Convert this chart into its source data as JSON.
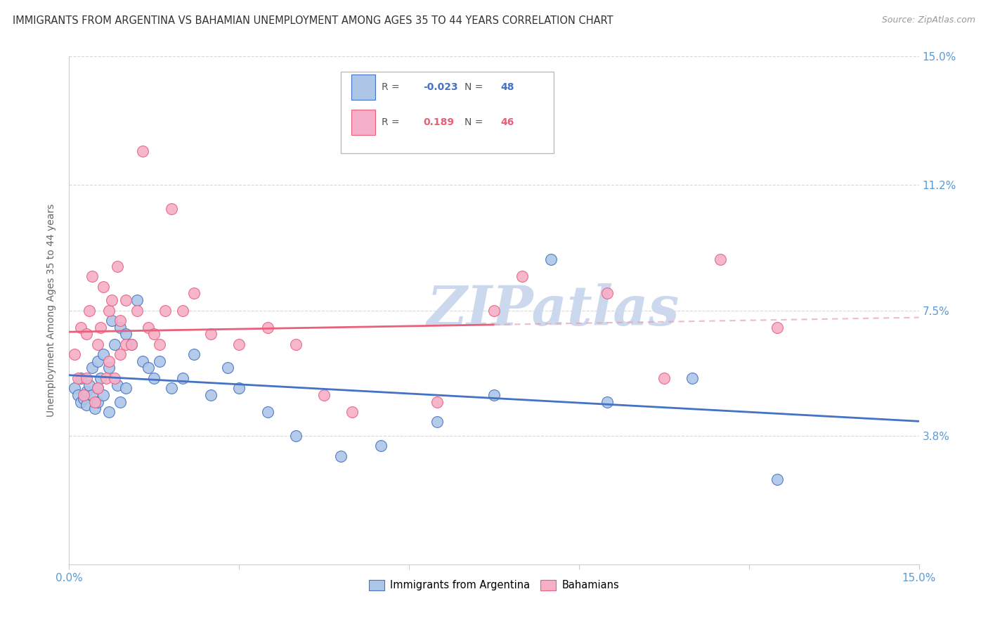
{
  "title": "IMMIGRANTS FROM ARGENTINA VS BAHAMIAN UNEMPLOYMENT AMONG AGES 35 TO 44 YEARS CORRELATION CHART",
  "source": "Source: ZipAtlas.com",
  "ylabel": "Unemployment Among Ages 35 to 44 years",
  "xlim": [
    0,
    15
  ],
  "ylim": [
    0,
    15
  ],
  "yticks": [
    3.8,
    7.5,
    11.2,
    15.0
  ],
  "xticks": [
    0,
    3,
    6,
    9,
    12,
    15
  ],
  "legend_blue_r": "-0.023",
  "legend_blue_n": "48",
  "legend_pink_r": "0.189",
  "legend_pink_n": "46",
  "blue_scatter_x": [
    0.1,
    0.15,
    0.2,
    0.2,
    0.25,
    0.3,
    0.3,
    0.35,
    0.4,
    0.4,
    0.45,
    0.5,
    0.5,
    0.5,
    0.55,
    0.6,
    0.6,
    0.7,
    0.7,
    0.75,
    0.8,
    0.85,
    0.9,
    0.9,
    1.0,
    1.0,
    1.1,
    1.2,
    1.3,
    1.4,
    1.5,
    1.6,
    1.8,
    2.0,
    2.2,
    2.5,
    2.8,
    3.0,
    3.5,
    4.0,
    4.8,
    5.5,
    6.5,
    7.5,
    8.5,
    9.5,
    11.0,
    12.5
  ],
  "blue_scatter_y": [
    5.2,
    5.0,
    4.8,
    5.5,
    4.9,
    5.1,
    4.7,
    5.3,
    5.0,
    5.8,
    4.6,
    5.2,
    4.8,
    6.0,
    5.5,
    5.0,
    6.2,
    5.8,
    4.5,
    7.2,
    6.5,
    5.3,
    4.8,
    7.0,
    6.8,
    5.2,
    6.5,
    7.8,
    6.0,
    5.8,
    5.5,
    6.0,
    5.2,
    5.5,
    6.2,
    5.0,
    5.8,
    5.2,
    4.5,
    3.8,
    3.2,
    3.5,
    4.2,
    5.0,
    9.0,
    4.8,
    5.5,
    2.5
  ],
  "pink_scatter_x": [
    0.1,
    0.15,
    0.2,
    0.25,
    0.3,
    0.3,
    0.35,
    0.4,
    0.45,
    0.5,
    0.5,
    0.55,
    0.6,
    0.65,
    0.7,
    0.7,
    0.75,
    0.8,
    0.85,
    0.9,
    0.9,
    1.0,
    1.0,
    1.1,
    1.2,
    1.3,
    1.4,
    1.5,
    1.6,
    1.7,
    1.8,
    2.0,
    2.2,
    2.5,
    3.0,
    3.5,
    4.0,
    4.5,
    5.0,
    6.5,
    7.5,
    8.0,
    9.5,
    10.5,
    11.5,
    12.5
  ],
  "pink_scatter_y": [
    6.2,
    5.5,
    7.0,
    5.0,
    5.5,
    6.8,
    7.5,
    8.5,
    4.8,
    5.2,
    6.5,
    7.0,
    8.2,
    5.5,
    7.5,
    6.0,
    7.8,
    5.5,
    8.8,
    6.2,
    7.2,
    6.5,
    7.8,
    6.5,
    7.5,
    12.2,
    7.0,
    6.8,
    6.5,
    7.5,
    10.5,
    7.5,
    8.0,
    6.8,
    6.5,
    7.0,
    6.5,
    5.0,
    4.5,
    4.8,
    7.5,
    8.5,
    8.0,
    5.5,
    9.0,
    7.0
  ],
  "blue_color": "#adc6e8",
  "pink_color": "#f5afc8",
  "blue_line_color": "#4472c4",
  "pink_line_color": "#e8607a",
  "background_color": "#ffffff",
  "grid_color": "#d8d8d8",
  "tick_label_color": "#5b9bd5",
  "watermark": "ZIPatlas",
  "watermark_color": "#ccd8ed",
  "pink_line_solid_end": 7.5,
  "pink_dashed_color": "#e8a0b0"
}
